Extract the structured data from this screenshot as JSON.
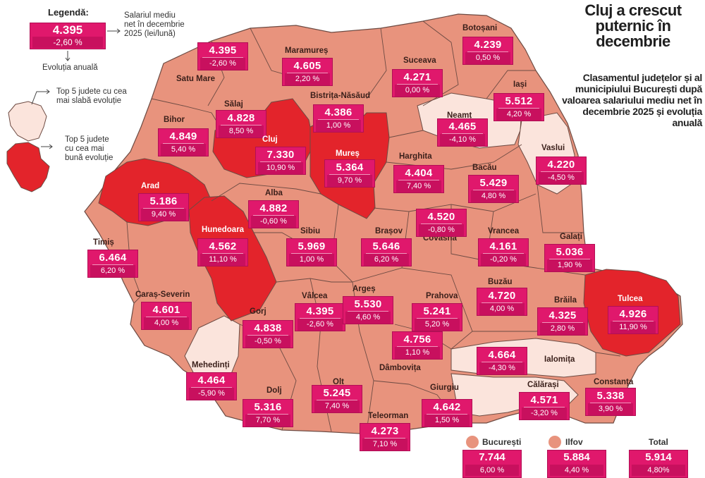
{
  "colors": {
    "normal": "#e8937d",
    "best": "#e3242b",
    "worst": "#fbe4dc",
    "badge": "#e0186c",
    "border": "#6d4b43"
  },
  "legend": {
    "title": "Legendă:",
    "sample_value": "4.395",
    "sample_change": "-2,60 %",
    "value_note": "Salariul mediu net în decembrie 2025 (lei/lună)",
    "change_note": "Evoluția anuală",
    "worst_note": "Top 5 judete cu cea mai slabă evoluție",
    "best_note": "Top 5 judete cu cea mai bună evoluție"
  },
  "title": "Cluj a crescut puternic în decembrie",
  "subtitle": "Clasamentul județelor și al municipiului București după valoarea salariului mediu net în decembrie 2025 și evoluția anuală",
  "counties": [
    {
      "name": "Satu Mare",
      "value": "4.395",
      "change": "-2,60 %"
    },
    {
      "name": "Maramureș",
      "value": "4.605",
      "change": "2,20 %"
    },
    {
      "name": "Botoșani",
      "value": "4.239",
      "change": "0,50 %"
    },
    {
      "name": "Suceava",
      "value": "4.271",
      "change": "0,00 %"
    },
    {
      "name": "Iași",
      "value": "5.512",
      "change": "4,20 %"
    },
    {
      "name": "Sălaj",
      "value": "4.828",
      "change": "8,50 %"
    },
    {
      "name": "Bistrița-Năsăud",
      "value": "4.386",
      "change": "1,00 %"
    },
    {
      "name": "Neamț",
      "value": "4.465",
      "change": "-4,10 %"
    },
    {
      "name": "Bihor",
      "value": "4.849",
      "change": "5,40 %"
    },
    {
      "name": "Cluj",
      "value": "7.330",
      "change": "10,90 %"
    },
    {
      "name": "Mureș",
      "value": "5.364",
      "change": "9,70 %"
    },
    {
      "name": "Harghita",
      "value": "4.404",
      "change": "7,40 %"
    },
    {
      "name": "Bacău",
      "value": "5.429",
      "change": "4,80 %"
    },
    {
      "name": "Vaslui",
      "value": "4.220",
      "change": "-4,50 %"
    },
    {
      "name": "Arad",
      "value": "5.186",
      "change": "9,40 %"
    },
    {
      "name": "Alba",
      "value": "4.882",
      "change": "-0,60 %"
    },
    {
      "name": "Covasna",
      "value": "4.520",
      "change": "-0,80 %"
    },
    {
      "name": "Timiș",
      "value": "6.464",
      "change": "6,20 %"
    },
    {
      "name": "Hunedoara",
      "value": "4.562",
      "change": "11,10 %"
    },
    {
      "name": "Sibiu",
      "value": "5.969",
      "change": "1,00 %"
    },
    {
      "name": "Brașov",
      "value": "5.646",
      "change": "6,20 %"
    },
    {
      "name": "Vrancea",
      "value": "4.161",
      "change": "-0,20 %"
    },
    {
      "name": "Galați",
      "value": "5.036",
      "change": "1,90 %"
    },
    {
      "name": "Caraș-Severin",
      "value": "4.601",
      "change": "4,00 %"
    },
    {
      "name": "Gorj",
      "value": "4.838",
      "change": "-0,50 %"
    },
    {
      "name": "Vâlcea",
      "value": "4.395",
      "change": "-2,60 %"
    },
    {
      "name": "Argeș",
      "value": "5.530",
      "change": "4,60 %"
    },
    {
      "name": "Prahova",
      "value": "5.241",
      "change": "5,20 %"
    },
    {
      "name": "Buzău",
      "value": "4.720",
      "change": "4,00 %"
    },
    {
      "name": "Brăila",
      "value": "4.325",
      "change": "2,80 %"
    },
    {
      "name": "Tulcea",
      "value": "4.926",
      "change": "11,90 %"
    },
    {
      "name": "Dâmbovița",
      "value": "4.756",
      "change": "1,10 %"
    },
    {
      "name": "Ialomița",
      "value": "4.664",
      "change": "-4,30 %"
    },
    {
      "name": "Mehedinți",
      "value": "4.464",
      "change": "-5,90 %"
    },
    {
      "name": "Dolj",
      "value": "5.316",
      "change": "7,70 %"
    },
    {
      "name": "Olt",
      "value": "5.245",
      "change": "7,40 %"
    },
    {
      "name": "Teleorman",
      "value": "4.273",
      "change": "7,10 %"
    },
    {
      "name": "Giurgiu",
      "value": "4.642",
      "change": "1,50 %"
    },
    {
      "name": "Călărași",
      "value": "4.571",
      "change": "-3,20 %"
    },
    {
      "name": "Constanța",
      "value": "5.338",
      "change": "3,90 %"
    }
  ],
  "bottom": {
    "bucuresti": {
      "name": "București",
      "value": "7.744",
      "change": "6,00 %"
    },
    "ilfov": {
      "name": "Ilfov",
      "value": "5.884",
      "change": "4,40 %"
    },
    "total": {
      "name": "Total",
      "value": "5.914",
      "change": "4,80%"
    }
  }
}
